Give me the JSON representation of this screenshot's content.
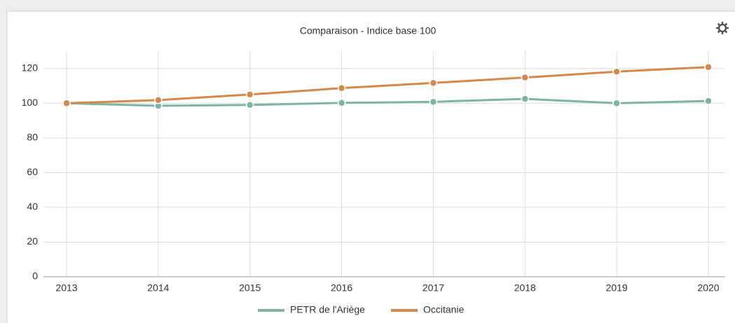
{
  "chart_data": {
    "type": "line",
    "title": "Comparaison - Indice base 100",
    "categories": [
      "2013",
      "2014",
      "2015",
      "2016",
      "2017",
      "2018",
      "2019",
      "2020"
    ],
    "series": [
      {
        "name": "PETR de l'Ariège",
        "color": "#7db4a4",
        "values": [
          100,
          98.5,
          99,
          100.2,
          100.8,
          102.5,
          100,
          101.3
        ]
      },
      {
        "name": "Occitanie",
        "color": "#d4894c",
        "values": [
          100,
          101.8,
          105,
          108.7,
          111.7,
          114.8,
          118.2,
          120.8
        ]
      }
    ],
    "ylim": [
      0,
      130
    ],
    "yticks": [
      0,
      20,
      40,
      60,
      80,
      100,
      120
    ],
    "grid": true
  }
}
